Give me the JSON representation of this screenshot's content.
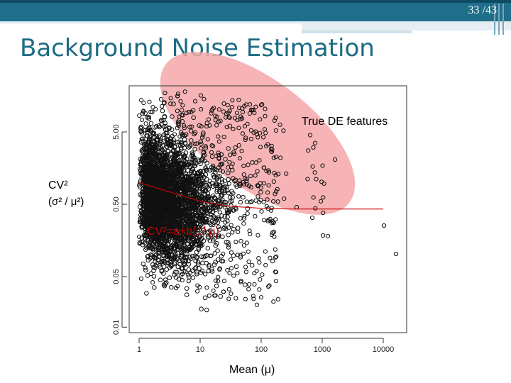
{
  "slide": {
    "page_number": "33",
    "page_total": "/43",
    "title": "Background Noise Estimation",
    "colors": {
      "header": "#1f6f8b",
      "title": "#1c6b84",
      "highlight": "#f4a7a9",
      "fit_line": "#c40000"
    }
  },
  "plot": {
    "annotation_true_de": "True DE features",
    "ylabel_line1": "CV²",
    "ylabel_line2": "(σ² / μ²)",
    "fit_equation": "CV²=a+b(1/ μ)",
    "xlabel": "Mean (μ)",
    "x_scale": "log",
    "y_scale": "log",
    "x_ticks": [
      "1",
      "10",
      "100",
      "1000",
      "10000"
    ],
    "y_ticks": [
      "5.00",
      "0.50",
      "0.05",
      "0.01"
    ]
  },
  "chart_data": {
    "type": "scatter",
    "xlabel": "Mean (μ)",
    "ylabel": "CV² (σ² / μ²)",
    "xscale": "log",
    "yscale": "log",
    "xlim": [
      0.85,
      20000
    ],
    "ylim": [
      0.01,
      20
    ],
    "fit": {
      "label": "CV²=a+b(1/ μ)",
      "x": [
        1,
        3,
        10,
        30,
        100,
        300,
        1000,
        3000,
        10000
      ],
      "y": [
        1.0,
        0.75,
        0.55,
        0.47,
        0.44,
        0.43,
        0.43,
        0.43,
        0.43
      ]
    },
    "annotations": [
      {
        "text": "True DE features"
      }
    ]
  }
}
